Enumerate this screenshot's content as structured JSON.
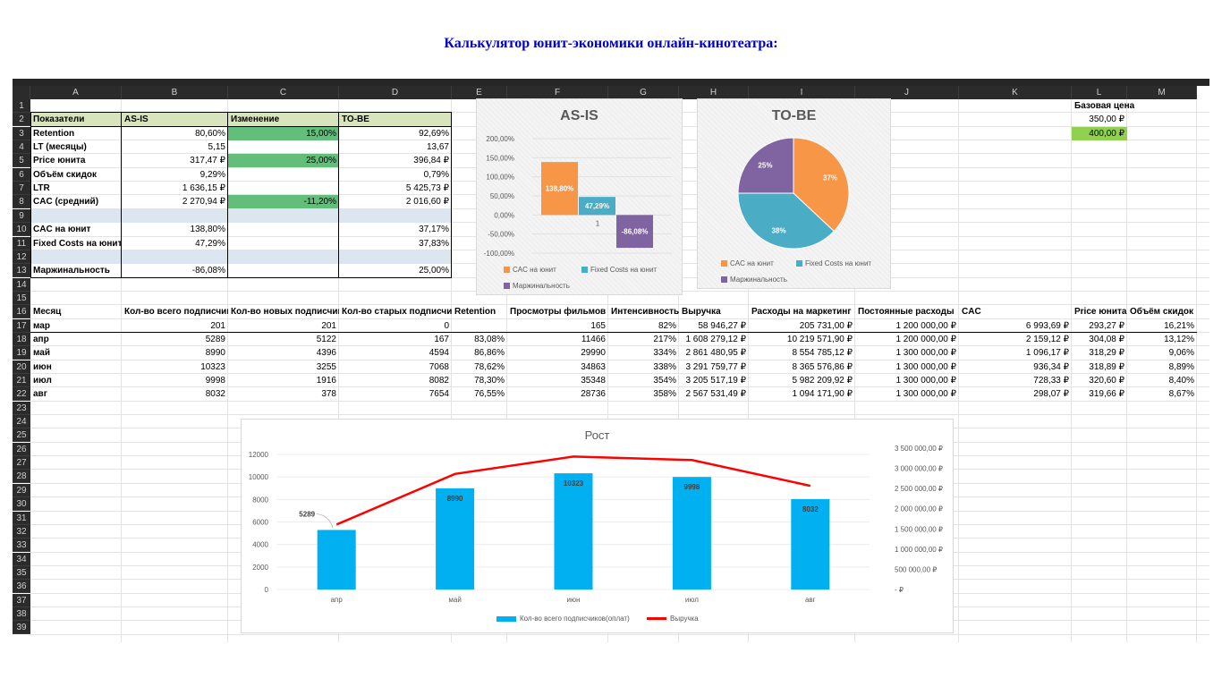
{
  "page_title": "Калькулятор юнит-экономики онлайн-кинотеатра:",
  "columns": [
    "A",
    "B",
    "C",
    "D",
    "E",
    "F",
    "G",
    "H",
    "I",
    "J",
    "K",
    "L",
    "M"
  ],
  "rows": [
    "1",
    "2",
    "3",
    "4",
    "5",
    "6",
    "7",
    "8",
    "9",
    "10",
    "11",
    "12",
    "13",
    "14",
    "15",
    "16",
    "17",
    "18",
    "19",
    "20",
    "21",
    "22",
    "23",
    "24",
    "25",
    "26",
    "27",
    "28",
    "29",
    "30",
    "31",
    "32",
    "33",
    "34",
    "35",
    "36",
    "37",
    "38",
    "39"
  ],
  "summary": {
    "headers": [
      "Показатели",
      "AS-IS",
      "Изменение",
      "TO-BE"
    ],
    "rows": [
      {
        "label": "Retention",
        "as_is": "80,60%",
        "change": "15,00%",
        "to_be": "92,69%"
      },
      {
        "label": "LT (месяцы)",
        "as_is": "5,15",
        "change": "",
        "to_be": "13,67"
      },
      {
        "label": "Price юнита",
        "as_is": "317,47 ₽",
        "change": "25,00%",
        "to_be": "396,84 ₽"
      },
      {
        "label": "Объём скидок",
        "as_is": "9,29%",
        "change": "",
        "to_be": "0,79%"
      },
      {
        "label": "LTR",
        "as_is": "1 636,15 ₽",
        "change": "",
        "to_be": "5 425,73 ₽"
      },
      {
        "label": "CAC (средний)",
        "as_is": "2 270,94 ₽",
        "change": "-11,20%",
        "to_be": "2 016,60 ₽"
      },
      {
        "label": "",
        "as_is": "",
        "change": "",
        "to_be": ""
      },
      {
        "label": "CAC на юнит",
        "as_is": "138,80%",
        "change": "",
        "to_be": "37,17%"
      },
      {
        "label": "Fixed Costs на юнит",
        "as_is": "47,29%",
        "change": "",
        "to_be": "37,83%"
      },
      {
        "label": "",
        "as_is": "",
        "change": "",
        "to_be": ""
      },
      {
        "label": "Маржинальность",
        "as_is": "-86,08%",
        "change": "",
        "to_be": "25,00%"
      }
    ]
  },
  "base_price": {
    "label": "Базовая цена",
    "value1": "350,00 ₽",
    "value2": "400,00 ₽"
  },
  "monthly_table": {
    "headers": [
      "Месяц",
      "Кол-во всего подписчиков",
      "Кол-во новых подписчиков",
      "Кол-во старых подписчиков",
      "Retention",
      "Просмотры фильмов",
      "Интенсивность",
      "Выручка",
      "Расходы на маркетинг",
      "Постоянные расходы",
      "CAC",
      "Price юнита",
      "Объём скидок"
    ],
    "rows": [
      [
        "мар",
        "201",
        "201",
        "0",
        "",
        "165",
        "82%",
        "58 946,27 ₽",
        "205 731,00 ₽",
        "1 200 000,00 ₽",
        "6 993,69 ₽",
        "293,27 ₽",
        "16,21%"
      ],
      [
        "апр",
        "5289",
        "5122",
        "167",
        "83,08%",
        "11466",
        "217%",
        "1 608 279,12 ₽",
        "10 219 571,90 ₽",
        "1 200 000,00 ₽",
        "2 159,12 ₽",
        "304,08 ₽",
        "13,12%"
      ],
      [
        "май",
        "8990",
        "4396",
        "4594",
        "86,86%",
        "29990",
        "334%",
        "2 861 480,95 ₽",
        "8 554 785,12 ₽",
        "1 300 000,00 ₽",
        "1 096,17 ₽",
        "318,29 ₽",
        "9,06%"
      ],
      [
        "июн",
        "10323",
        "3255",
        "7068",
        "78,62%",
        "34863",
        "338%",
        "3 291 759,77 ₽",
        "8 365 576,86 ₽",
        "1 300 000,00 ₽",
        "936,34 ₽",
        "318,89 ₽",
        "8,89%"
      ],
      [
        "июл",
        "9998",
        "1916",
        "8082",
        "78,30%",
        "35348",
        "354%",
        "3 205 517,19 ₽",
        "5 982 209,92 ₽",
        "1 300 000,00 ₽",
        "728,33 ₽",
        "320,60 ₽",
        "8,40%"
      ],
      [
        "авг",
        "8032",
        "378",
        "7654",
        "76,55%",
        "28736",
        "358%",
        "2 567 531,49 ₽",
        "1 094 171,90 ₽",
        "1 300 000,00 ₽",
        "298,07 ₽",
        "319,66 ₽",
        "8,67%"
      ]
    ]
  },
  "chart_data": [
    {
      "type": "bar",
      "title": "AS-IS",
      "categories": [
        "CAC на юнит",
        "Fixed Costs на юнит",
        "Маржинальность"
      ],
      "values": [
        138.8,
        47.29,
        -86.08
      ],
      "data_labels": [
        "138,80%",
        "47,29%",
        "-86,08%"
      ],
      "colors": [
        "#f79646",
        "#4bacc6",
        "#8064a2"
      ],
      "ylim": [
        -100,
        200
      ],
      "y_ticks": [
        "200,00%",
        "150,00%",
        "100,00%",
        "50,00%",
        "0,00%",
        "-50,00%",
        "-100,00%"
      ],
      "x_tick_labels": [
        "1"
      ],
      "legend": [
        "CAC на юнит",
        "Fixed Costs на юнит",
        "Маржинальность"
      ],
      "legend_position": "bottom"
    },
    {
      "type": "pie",
      "title": "TO-BE",
      "categories": [
        "CAC на юнит",
        "Fixed Costs на юнит",
        "Маржинальность"
      ],
      "values": [
        37,
        38,
        25
      ],
      "data_labels": [
        "37%",
        "38%",
        "25%"
      ],
      "colors": [
        "#f79646",
        "#4bacc6",
        "#8064a2"
      ],
      "legend": [
        "CAC на юнит",
        "Fixed Costs на юнит",
        "Маржинальность"
      ],
      "legend_position": "bottom"
    },
    {
      "type": "bar",
      "title": "Рост",
      "categories": [
        "апр",
        "май",
        "июн",
        "июл",
        "авг"
      ],
      "series": [
        {
          "name": "Кол-во всего подписчиков(оплат)",
          "type": "bar",
          "values": [
            5289,
            8990,
            10323,
            9998,
            8032
          ],
          "color": "#00b0f0"
        },
        {
          "name": "Выручка",
          "type": "line",
          "axis": "secondary",
          "values": [
            1608279.12,
            2861480.95,
            3291759.77,
            3205517.19,
            2567531.49
          ],
          "color": "#ff0000"
        }
      ],
      "data_labels": [
        "5289",
        "8990",
        "10323",
        "9998",
        "8032"
      ],
      "ylim": [
        0,
        12000
      ],
      "y_ticks": [
        "12000",
        "10000",
        "8000",
        "6000",
        "4000",
        "2000",
        "0"
      ],
      "y2lim": [
        0,
        3500000
      ],
      "y2_ticks": [
        "3 500 000,00 ₽",
        "3 000 000,00 ₽",
        "2 500 000,00 ₽",
        "2 000 000,00 ₽",
        "1 500 000,00 ₽",
        "1 000 000,00 ₽",
        "500 000,00 ₽",
        "-  ₽"
      ],
      "legend_position": "bottom"
    }
  ]
}
